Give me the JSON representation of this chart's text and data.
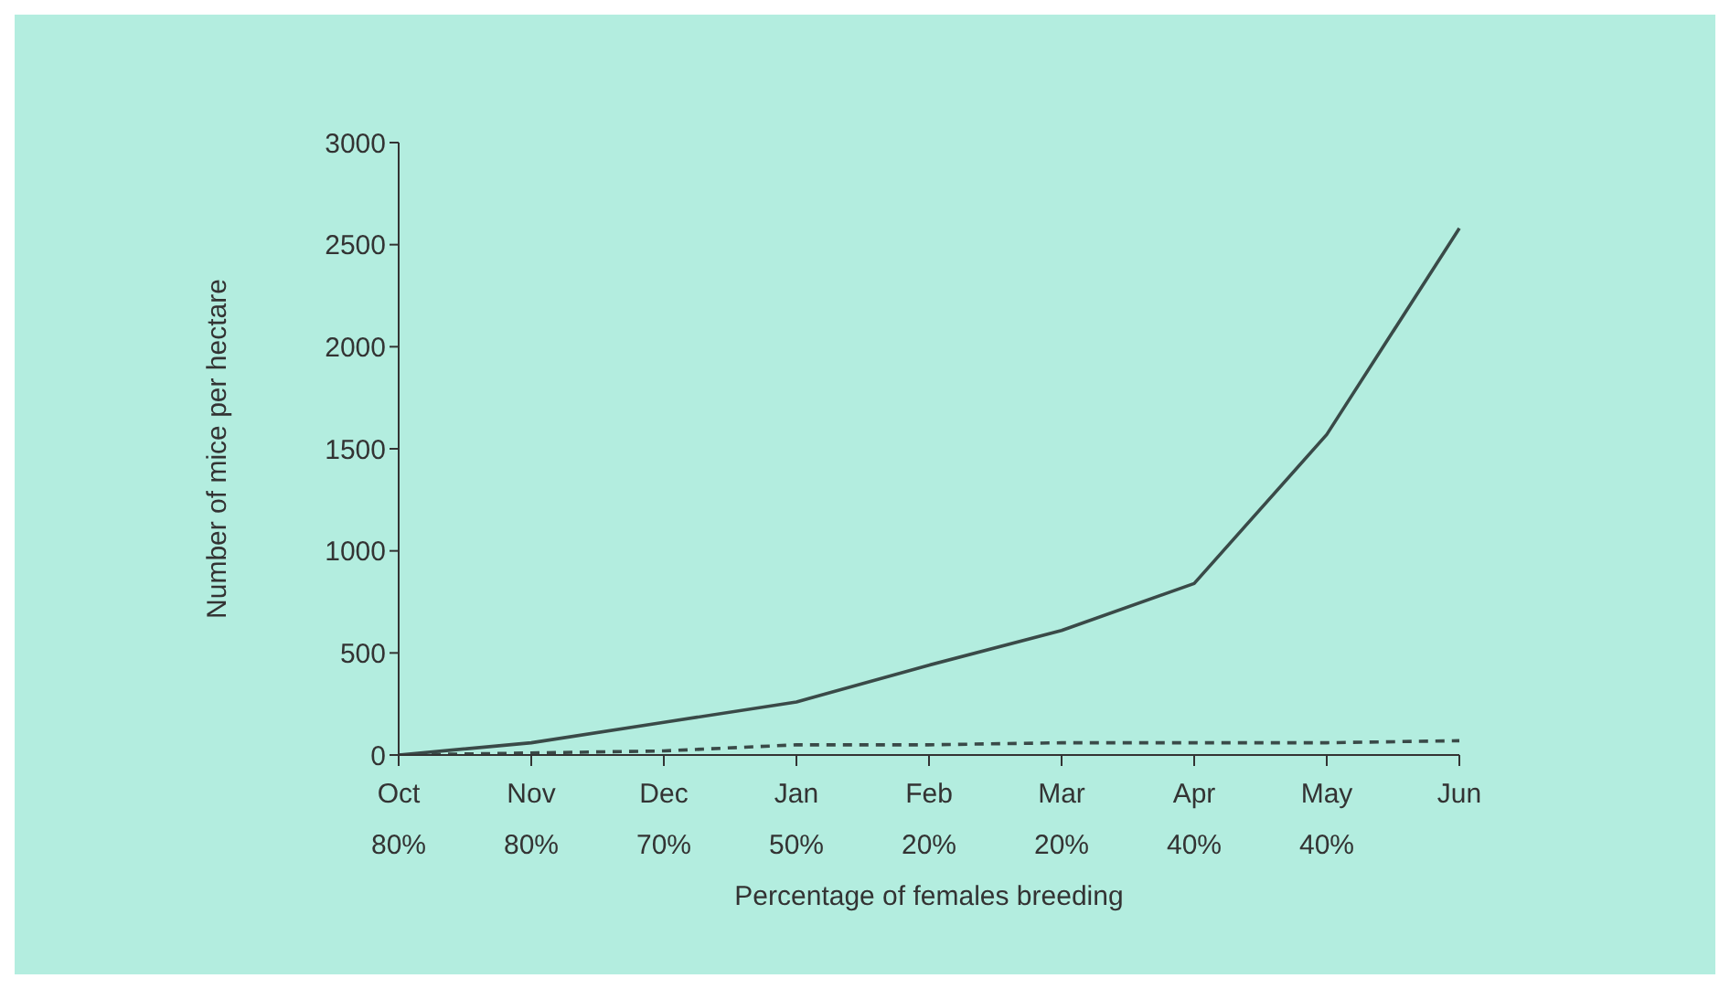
{
  "chart_data": {
    "type": "line",
    "xlabel": "Percentage of females breeding",
    "ylabel": "Number of mice per hectare",
    "categories": [
      "Oct\n80%",
      "Nov\n80%",
      "Dec\n70%",
      "Jan\n50%",
      "Feb\n20%",
      "Mar\n20%",
      "Apr\n40%",
      "May\n40%",
      "Jun"
    ],
    "series": [
      {
        "color": "#3a4a48",
        "line_style": "solid",
        "values": [
          0,
          60,
          160,
          260,
          440,
          610,
          840,
          1570,
          2580
        ]
      },
      {
        "color": "#3a4a48",
        "line_style": "dashed",
        "values": [
          0,
          10,
          20,
          50,
          50,
          60,
          60,
          60,
          70
        ]
      }
    ],
    "ylim": [
      0,
      3000
    ],
    "yticks": [
      0,
      500,
      1000,
      1500,
      2000,
      2500,
      3000
    ],
    "marker": "none"
  }
}
